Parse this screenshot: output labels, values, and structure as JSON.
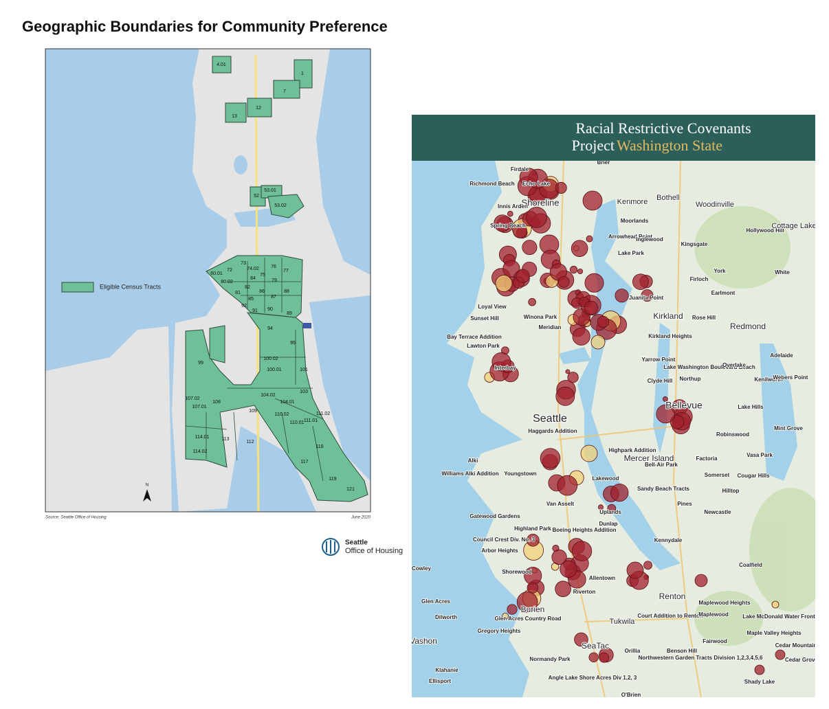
{
  "page": {
    "title": "Geographic Boundaries for Community Preference",
    "left_map": {
      "legend": "Eligible Census Tracts",
      "north": "N",
      "source": "Source: Seattle Office of Housing",
      "date": "June 2020",
      "tracts": [
        "4.01",
        "1",
        "7",
        "12",
        "13",
        "52",
        "53.01",
        "53.02",
        "72",
        "73",
        "74.02",
        "76",
        "77",
        "75",
        "79",
        "60.01",
        "80.02",
        "81",
        "82",
        "84",
        "85",
        "86",
        "87",
        "88",
        "90",
        "91",
        "92",
        "89",
        "94",
        "95",
        "99",
        "100.02",
        "100.01",
        "101",
        "103",
        "104.02",
        "104.01",
        "108",
        "107.01",
        "107.02",
        "109",
        "110.02",
        "110.01",
        "111.01",
        "111.02",
        "114.01",
        "113",
        "112",
        "114.02",
        "118",
        "117",
        "119",
        "121"
      ]
    },
    "logo": {
      "line1": "Seattle",
      "line2": "Office of Housing"
    },
    "right_map": {
      "header_line1": "Racial Restrictive Covenants",
      "header_line2_a": "Project",
      "header_line2_b": "Washington State",
      "places": [
        "Brier",
        "Firdale",
        "Richmond Beach",
        "Echo Lake",
        "Shoreline",
        "Innis Arden",
        "Kenmore",
        "Bothell",
        "Woodinville",
        "Spring Beach",
        "Moorlands",
        "Hollywood Hill",
        "Cottage Lake",
        "Arrowhead Point",
        "Inglewood",
        "Kingsgate",
        "Lake Park",
        "York",
        "White",
        "Firloch",
        "Earlmont",
        "Juanita Point",
        "Loyal View",
        "Winona Park",
        "Sunset Hill",
        "Meridian",
        "Kirkland",
        "Rose Hill",
        "Redmond",
        "Bay Terrace Addition",
        "Kirkland Heights",
        "Lawton Park",
        "Yarrow Point",
        "Adelaide",
        "Interbay",
        "Lake Washington Boulevard Beach",
        "Overlake",
        "Clyde Hill",
        "Northup",
        "Kenilworth",
        "Webers Point",
        "Seattle",
        "Bellevue",
        "Lake Hills",
        "Haggards Addition",
        "Mint Grove",
        "Robinswood",
        "Highpark Addition",
        "Mercer Island",
        "Bell-Air Park",
        "Factoria",
        "Vasa Park",
        "Alki",
        "Williams Alki Addition",
        "Youngstown",
        "Somerset",
        "Cougar Hills",
        "Hilltop",
        "Lakewood",
        "Sandy Beach Tracts",
        "Van Asselt",
        "Uplands",
        "Pines",
        "Newcastle",
        "Gatewood Gardens",
        "Highland Park",
        "Boeing Heights Addition",
        "Dunlap",
        "Council Crest Div. No. 3",
        "Arbor Heights",
        "Kennydale",
        "Coalfield",
        "Cowley",
        "Shorewood",
        "Allentown",
        "Riverton",
        "Renton",
        "Glen Acres",
        "Burien",
        "Maplewood Heights",
        "Dilworth",
        "Glen Acres Country Road",
        "Tukwila",
        "Court Addition to Renton",
        "Maplewood",
        "Lake McDonald Water Front",
        "Gregory Heights",
        "Maple Valley Heights",
        "Vashon",
        "Fairwood",
        "Cedar Mountain",
        "SeaTac",
        "Orillia",
        "Benson Hill",
        "Normandy Park",
        "Northwestern Garden Tracts Division 1,2,3,4,5,6",
        "Cedar Grove",
        "Klahanie",
        "Ellisport",
        "Angle Lake Shore Acres Div 1,2, 3",
        "Shady Lake",
        "O'Brien"
      ]
    }
  }
}
